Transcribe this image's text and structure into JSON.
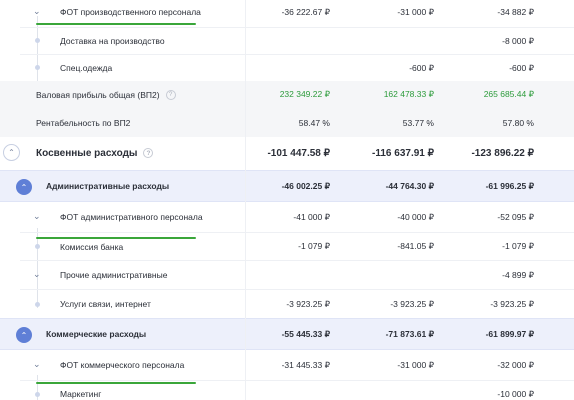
{
  "rows": {
    "fot_prod": {
      "label": "ФОТ производственного персонала",
      "v1": "-36 222.67 ₽",
      "v2": "-31 000 ₽",
      "v3": "-34 882 ₽"
    },
    "delivery": {
      "label": "Доставка на производство",
      "v1": "",
      "v2": "",
      "v3": "-8 000 ₽"
    },
    "workwear": {
      "label": "Спец.одежда",
      "v1": "",
      "v2": "-600 ₽",
      "v3": "-600 ₽"
    },
    "gross_profit": {
      "label": "Валовая прибыль общая (ВП2)",
      "v1": "232 349.22 ₽",
      "v2": "162 478.33 ₽",
      "v3": "265 685.44 ₽"
    },
    "profitability": {
      "label": "Рентабельность по ВП2",
      "v1": "58.47 %",
      "v2": "53.77 %",
      "v3": "57.80 %"
    },
    "indirect": {
      "label": "Косвенные расходы",
      "v1": "-101 447.58 ₽",
      "v2": "-116 637.91 ₽",
      "v3": "-123 896.22 ₽"
    },
    "admin": {
      "label": "Административные расходы",
      "v1": "-46 002.25 ₽",
      "v2": "-44 764.30 ₽",
      "v3": "-61 996.25 ₽"
    },
    "fot_admin": {
      "label": "ФОТ административного персонала",
      "v1": "-41 000 ₽",
      "v2": "-40 000 ₽",
      "v3": "-52 095 ₽"
    },
    "bank_fee": {
      "label": "Комиссия банка",
      "v1": "-1 079 ₽",
      "v2": "-841.05 ₽",
      "v3": "-1 079 ₽"
    },
    "other_admin": {
      "label": "Прочие административные",
      "v1": "",
      "v2": "",
      "v3": "-4 899 ₽"
    },
    "telecom": {
      "label": "Услуги связи, интернет",
      "v1": "-3 923.25 ₽",
      "v2": "-3 923.25 ₽",
      "v3": "-3 923.25 ₽"
    },
    "commercial": {
      "label": "Коммерческие расходы",
      "v1": "-55 445.33 ₽",
      "v2": "-71 873.61 ₽",
      "v3": "-61 899.97 ₽"
    },
    "fot_comm": {
      "label": "ФОТ коммерческого персонала",
      "v1": "-31 445.33 ₽",
      "v2": "-31 000 ₽",
      "v3": "-32 000 ₽"
    },
    "marketing": {
      "label": "Маркетинг",
      "v1": "",
      "v2": "",
      "v3": "-10 000 ₽"
    }
  },
  "icons": {
    "chevron": "chevron-down-icon",
    "help": "help-icon"
  },
  "colors": {
    "positive": "#2c9b3b",
    "accent": "#5f7fd6",
    "highlight": "#edf0fb",
    "underline": "#3aa63a"
  }
}
